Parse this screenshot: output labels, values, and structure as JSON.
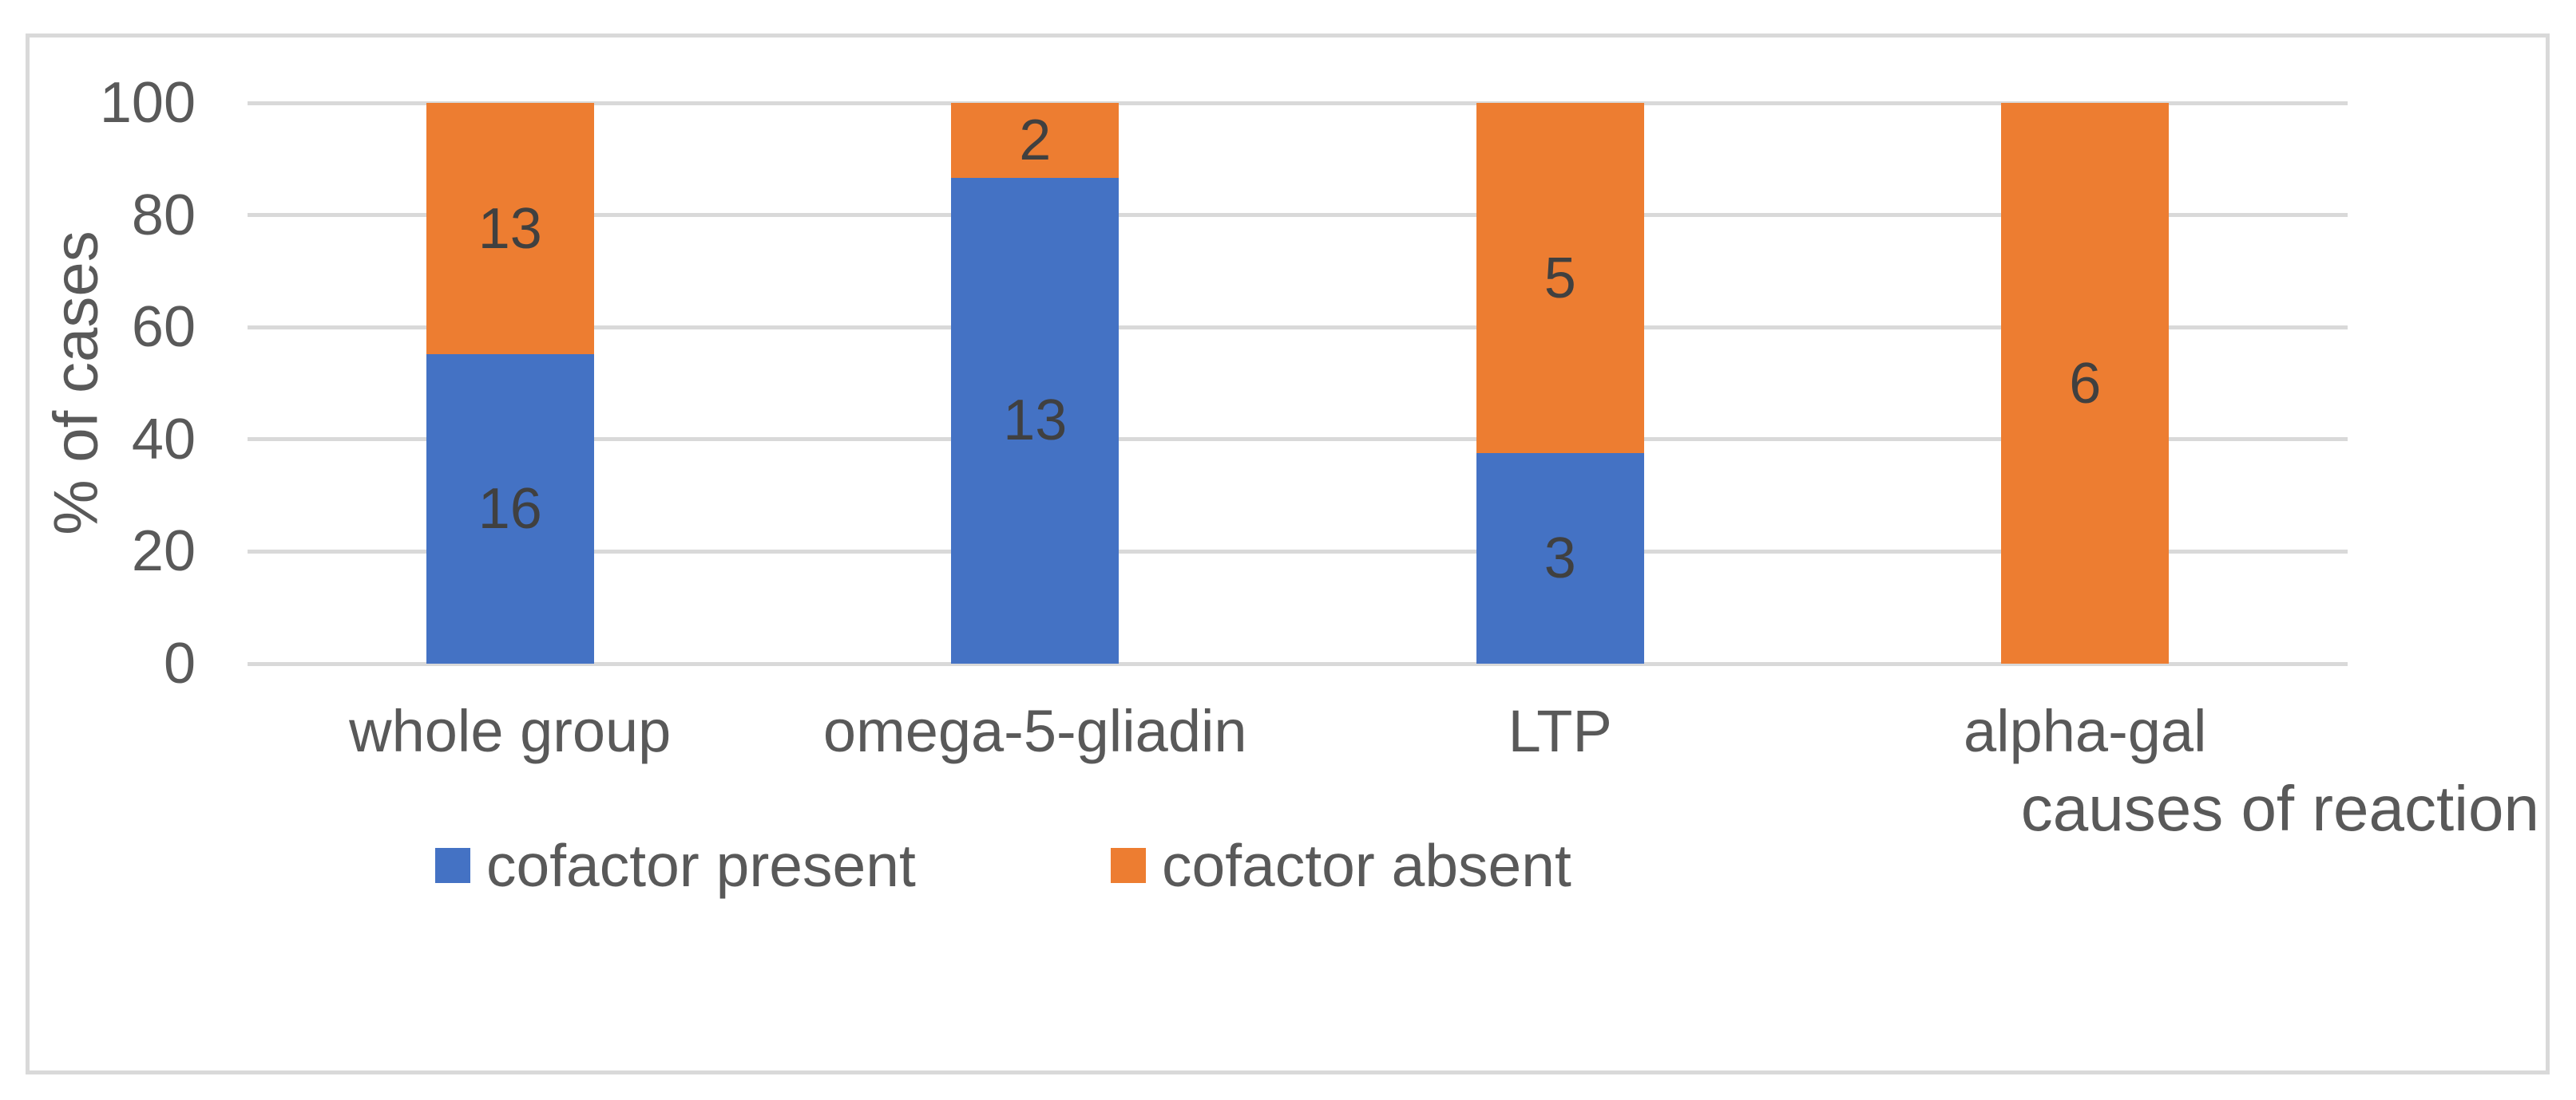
{
  "chart_data": {
    "type": "bar",
    "stacked": true,
    "stacked_mode": "percent",
    "title": "",
    "categories": [
      "whole group",
      "omega-5-gliadin",
      "LTP",
      "alpha-gal"
    ],
    "series": [
      {
        "name": "cofactor present",
        "color": "#4472C4",
        "values": [
          16,
          13,
          3,
          0
        ]
      },
      {
        "name": "cofactor absent",
        "color": "#ED7D31",
        "values": [
          13,
          2,
          5,
          6
        ]
      }
    ],
    "ylabel": "% of cases",
    "xlabel": "causes of reaction",
    "yticks": [
      0,
      20,
      40,
      60,
      80,
      100
    ],
    "ylim": [
      0,
      100
    ],
    "grid": true,
    "legend_position": "bottom",
    "data_labels": true
  },
  "colors": {
    "background": "#FFFFFF",
    "frame_border": "#D9D9D9",
    "gridline": "#D9D9D9",
    "axis_text": "#595959",
    "data_label_text": "#404040"
  }
}
